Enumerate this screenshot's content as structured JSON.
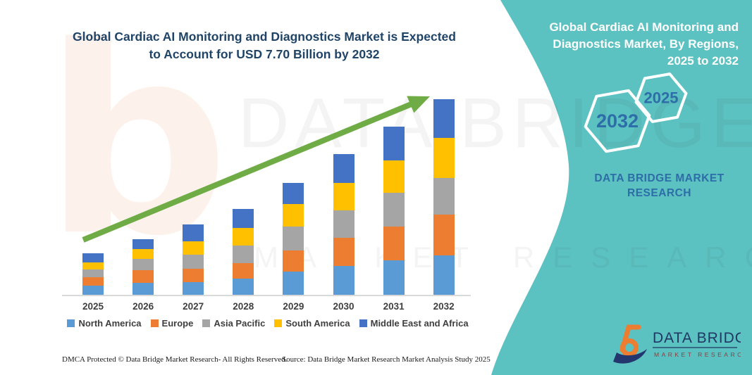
{
  "header": {
    "title": "Global Cardiac AI Monitoring and Diagnostics Market is Expected to Account for USD 7.70 Billion by 2032"
  },
  "side_panel": {
    "title": "Global Cardiac AI Monitoring and Diagnostics Market, By Regions, 2025 to 2032",
    "hex_large_label": "2032",
    "hex_small_label": "2025",
    "brand_text": "DATA BRIDGE MARKET RESEARCH",
    "teal_color": "#5cc1c1",
    "hex_text_color": "#2d6da8"
  },
  "watermarks": {
    "line1": "DATA BRIDGE",
    "line2": "MARKET RESEARCH",
    "peach_letter": "b"
  },
  "chart_data": {
    "type": "bar",
    "stacked": true,
    "title": "Global Cardiac AI Monitoring and Diagnostics Market is Expected to Account for USD 7.70 Billion by 2032",
    "unit": "USD Billion",
    "categories": [
      "2025",
      "2026",
      "2027",
      "2028",
      "2029",
      "2030",
      "2031",
      "2032"
    ],
    "series": [
      {
        "name": "North America",
        "color": "#5B9BD5",
        "values": [
          0.36,
          0.47,
          0.5,
          0.64,
          0.91,
          1.14,
          1.36,
          1.55
        ]
      },
      {
        "name": "Europe",
        "color": "#ED7D31",
        "values": [
          0.33,
          0.5,
          0.53,
          0.61,
          0.83,
          1.11,
          1.33,
          1.61
        ]
      },
      {
        "name": "Asia Pacific",
        "color": "#A5A5A5",
        "values": [
          0.3,
          0.44,
          0.55,
          0.69,
          0.94,
          1.08,
          1.33,
          1.44
        ]
      },
      {
        "name": "South America",
        "color": "#FFC000",
        "values": [
          0.3,
          0.39,
          0.53,
          0.69,
          0.89,
          1.08,
          1.27,
          1.58
        ]
      },
      {
        "name": "Middle East and Africa",
        "color": "#4472C4",
        "values": [
          0.36,
          0.39,
          0.66,
          0.75,
          0.83,
          1.14,
          1.33,
          1.52
        ]
      }
    ],
    "totals": [
      1.65,
      2.19,
      2.77,
      3.38,
      4.4,
      5.55,
      6.62,
      7.7
    ],
    "ylim": [
      0,
      8
    ],
    "grid": false,
    "axes_labels_visible": false,
    "legend_position": "bottom",
    "trend_arrow_color": "#6FAC46"
  },
  "footer": {
    "dmca": "DMCA Protected © Data Bridge Market Research-  All Rights Reserved.",
    "source": "Source: Data Bridge Market Research  Market Analysis Study 2025"
  },
  "logo": {
    "name": "DATA BRIDGE",
    "sub": "MARKET RESEARCH",
    "orange": "#ED7D31",
    "navy": "#1F3864"
  }
}
